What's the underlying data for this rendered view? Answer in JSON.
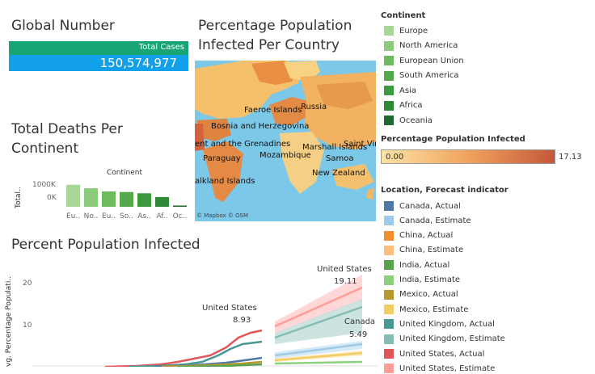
{
  "global_number": {
    "title": "Global Number",
    "header_label": "Total Cases",
    "value": "150,574,977",
    "header_color": "#17a673",
    "value_color": "#12a1e8"
  },
  "map": {
    "title_line1": "Percentage Population",
    "title_line2": "Infected Per Country",
    "labels": [
      "Faeroe Islands",
      "Russia",
      "Bosnia and Herzegovina",
      "ent and the Grenadines",
      "Marshall Islands",
      "Saint Vinc",
      "Paraguay",
      "Mozambique",
      "Samoa",
      "New Zealand",
      "alkland Islands"
    ],
    "attribution": "© Mapbox  © OSM"
  },
  "deaths": {
    "title_line1": "Total Deaths Per",
    "title_line2": "Continent",
    "legend_title": "Continent",
    "y_label": "Total..",
    "y_ticks": [
      "1000K",
      "0K"
    ],
    "categories": [
      "Eu..",
      "No..",
      "Eu..",
      "So..",
      "As..",
      "Af..",
      "Oc.."
    ]
  },
  "chart_data": {
    "type": "bar",
    "title": "Total Deaths Per Continent",
    "ylabel": "Total..",
    "categories": [
      "Eu..",
      "No..",
      "Eu..",
      "So..",
      "As..",
      "Af..",
      "Oc.."
    ],
    "values": [
      1060000,
      890000,
      740000,
      710000,
      650000,
      470000,
      60000
    ],
    "colors": [
      "#a6d796",
      "#8dcb7c",
      "#6dbb5f",
      "#54a84a",
      "#3d9a3c",
      "#2e8a39",
      "#1f6a32"
    ],
    "ylim": [
      0,
      1400000
    ]
  },
  "infected": {
    "title": "Percent Population Infected",
    "y_label": "vg. Percentage Populati..",
    "y_ticks": [
      "20",
      "10"
    ],
    "annotations": {
      "us_actual_name": "United States",
      "us_actual_value": "8.93",
      "us_est_name": "United States",
      "us_est_value": "19.11",
      "canada_name": "Canada",
      "canada_value": "5.49"
    }
  },
  "legend_continent": {
    "title": "Continent",
    "items": [
      {
        "label": "Europe",
        "color": "#a6d796"
      },
      {
        "label": "North America",
        "color": "#8dcb7c"
      },
      {
        "label": "European Union",
        "color": "#6dbb5f"
      },
      {
        "label": "South America",
        "color": "#54a84a"
      },
      {
        "label": "Asia",
        "color": "#3d9a3c"
      },
      {
        "label": "Africa",
        "color": "#2e8a39"
      },
      {
        "label": "Oceania",
        "color": "#1f6a32"
      }
    ]
  },
  "legend_pct": {
    "title": "Percentage Population Infected",
    "min": "0.00",
    "max": "17.13",
    "color_low": "#fbe3a6",
    "color_high": "#c4573a"
  },
  "legend_location": {
    "title": "Location, Forecast indicator",
    "items": [
      {
        "label": "Canada, Actual",
        "color": "#4e79a7"
      },
      {
        "label": "Canada, Estimate",
        "color": "#a0cbe8"
      },
      {
        "label": "China, Actual",
        "color": "#f28e2b"
      },
      {
        "label": "China, Estimate",
        "color": "#ffbe7d"
      },
      {
        "label": "India, Actual",
        "color": "#59a14f"
      },
      {
        "label": "India, Estimate",
        "color": "#8cd17d"
      },
      {
        "label": "Mexico, Actual",
        "color": "#b6992d"
      },
      {
        "label": "Mexico, Estimate",
        "color": "#f1ce63"
      },
      {
        "label": "United Kingdom, Actual",
        "color": "#499894"
      },
      {
        "label": "United Kingdom, Estimate",
        "color": "#86bcb6"
      },
      {
        "label": "United States, Actual",
        "color": "#e15759"
      },
      {
        "label": "United States, Estimate",
        "color": "#ff9d9a"
      }
    ]
  }
}
